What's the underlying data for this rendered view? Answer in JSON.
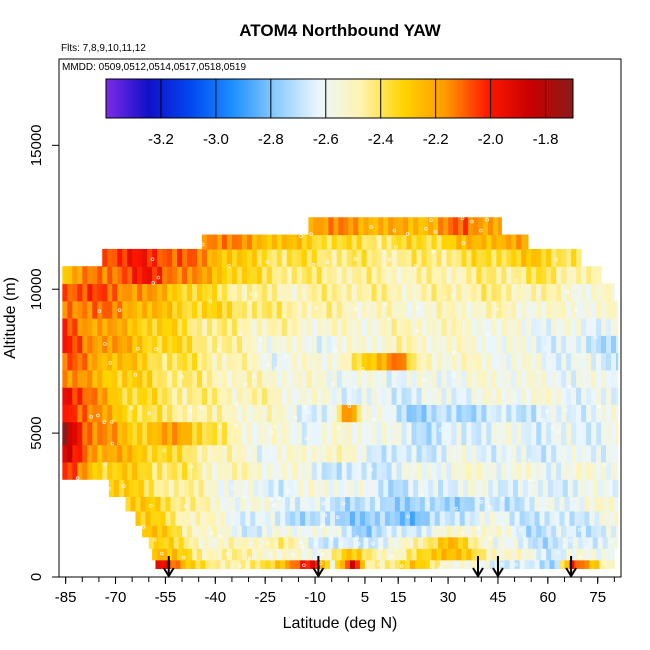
{
  "chart_data": {
    "type": "heatmap",
    "title": "ATOM4 Northbound YAW",
    "flights_note": "Flts: 7,8,9,10,11,12",
    "dates_note": "MMDD: 0509,0512,0514,0517,0518,0519",
    "xlabel": "Latitude (deg N)",
    "ylabel": "Altitude (m)",
    "xlim": [
      -87,
      82
    ],
    "ylim": [
      0,
      18000
    ],
    "x_ticks": [
      -85,
      -70,
      -55,
      -40,
      -25,
      -10,
      5,
      15,
      30,
      45,
      60,
      75
    ],
    "x_tick_labels": [
      "-85",
      "-70",
      "-55",
      "-40",
      "-25",
      "-10",
      "5",
      "15",
      "30",
      "45",
      "60",
      "75"
    ],
    "x_minor_step": 5,
    "y_ticks": [
      0,
      5000,
      10000,
      15000
    ],
    "y_tick_labels": [
      "0",
      "5000",
      "10000",
      "15000"
    ],
    "colorbar": {
      "range": [
        -3.4,
        -1.7
      ],
      "ticks": [
        -3.2,
        -3.0,
        -2.8,
        -2.6,
        -2.4,
        -2.2,
        -2.0,
        -1.8
      ],
      "tick_labels": [
        "-3.2",
        "-3.0",
        "-2.8",
        "-2.6",
        "-2.4",
        "-2.2",
        "-2.0",
        "-1.8"
      ],
      "colors": [
        "#7d2be6",
        "#1010c8",
        "#0048f0",
        "#1e90ff",
        "#8ccaff",
        "#eaf6ff",
        "#fff4b0",
        "#ffd400",
        "#ff9900",
        "#ff1800",
        "#c80000",
        "#8b1a1a"
      ]
    },
    "arrow_latitudes": [
      -54,
      -9,
      39,
      45,
      67
    ],
    "layers": [
      {
        "alt": [
          300,
          600
        ],
        "pts": [
          [
            -55,
            -1.9
          ],
          [
            -48,
            -2.35
          ],
          [
            -30,
            -2.5
          ],
          [
            -10,
            -1.95
          ],
          [
            -5,
            -2.5
          ],
          [
            2,
            -1.85
          ],
          [
            5,
            -2.5
          ],
          [
            20,
            -2.3
          ],
          [
            32,
            -2.55
          ],
          [
            50,
            -2.65
          ],
          [
            62,
            -2.75
          ],
          [
            67,
            -2.0
          ],
          [
            78,
            -2.5
          ]
        ]
      },
      {
        "alt": [
          600,
          1000
        ],
        "pts": [
          [
            -57,
            -2.2
          ],
          [
            -45,
            -2.45
          ],
          [
            -25,
            -2.5
          ],
          [
            -10,
            -2.6
          ],
          [
            0,
            -2.3
          ],
          [
            15,
            -2.55
          ],
          [
            28,
            -2.2
          ],
          [
            45,
            -2.5
          ],
          [
            60,
            -2.65
          ],
          [
            78,
            -2.55
          ]
        ]
      },
      {
        "alt": [
          1000,
          1400
        ],
        "pts": [
          [
            -58,
            -2.3
          ],
          [
            -40,
            -2.55
          ],
          [
            -20,
            -2.45
          ],
          [
            -5,
            -2.7
          ],
          [
            15,
            -2.6
          ],
          [
            30,
            -2.25
          ],
          [
            45,
            -2.6
          ],
          [
            60,
            -2.7
          ],
          [
            78,
            -2.6
          ]
        ]
      },
      {
        "alt": [
          1400,
          1800
        ],
        "pts": [
          [
            -60,
            -2.25
          ],
          [
            -45,
            -2.5
          ],
          [
            -30,
            -2.65
          ],
          [
            -10,
            -2.55
          ],
          [
            5,
            -2.75
          ],
          [
            25,
            -2.6
          ],
          [
            40,
            -2.5
          ],
          [
            55,
            -2.7
          ],
          [
            78,
            -2.65
          ]
        ]
      },
      {
        "alt": [
          1800,
          2300
        ],
        "pts": [
          [
            -62,
            -2.3
          ],
          [
            -50,
            -2.45
          ],
          [
            -35,
            -2.6
          ],
          [
            -15,
            -2.7
          ],
          [
            0,
            -2.75
          ],
          [
            20,
            -2.8
          ],
          [
            40,
            -2.6
          ],
          [
            60,
            -2.7
          ],
          [
            78,
            -2.6
          ]
        ]
      },
      {
        "alt": [
          2300,
          2800
        ],
        "pts": [
          [
            -65,
            -2.3
          ],
          [
            -55,
            -2.35
          ],
          [
            -40,
            -2.55
          ],
          [
            -20,
            -2.6
          ],
          [
            0,
            -2.7
          ],
          [
            25,
            -2.75
          ],
          [
            45,
            -2.7
          ],
          [
            65,
            -2.6
          ],
          [
            78,
            -2.55
          ]
        ]
      },
      {
        "alt": [
          2800,
          3400
        ],
        "pts": [
          [
            -72,
            -2.25
          ],
          [
            -60,
            -2.4
          ],
          [
            -45,
            -2.5
          ],
          [
            -25,
            -2.65
          ],
          [
            -5,
            -2.55
          ],
          [
            15,
            -2.7
          ],
          [
            35,
            -2.6
          ],
          [
            55,
            -2.65
          ],
          [
            78,
            -2.6
          ]
        ]
      },
      {
        "alt": [
          3400,
          4000
        ],
        "pts": [
          [
            -85,
            -2.05
          ],
          [
            -75,
            -2.3
          ],
          [
            -60,
            -2.35
          ],
          [
            -40,
            -2.5
          ],
          [
            -20,
            -2.55
          ],
          [
            0,
            -2.7
          ],
          [
            20,
            -2.6
          ],
          [
            40,
            -2.55
          ],
          [
            60,
            -2.6
          ],
          [
            78,
            -2.55
          ]
        ]
      },
      {
        "alt": [
          4000,
          4600
        ],
        "pts": [
          [
            -85,
            -1.9
          ],
          [
            -75,
            -2.2
          ],
          [
            -60,
            -2.3
          ],
          [
            -45,
            -2.45
          ],
          [
            -25,
            -2.6
          ],
          [
            -5,
            -2.5
          ],
          [
            15,
            -2.7
          ],
          [
            35,
            -2.6
          ],
          [
            55,
            -2.65
          ],
          [
            78,
            -2.6
          ]
        ]
      },
      {
        "alt": [
          4600,
          5400
        ],
        "pts": [
          [
            -85,
            -1.78
          ],
          [
            -78,
            -2.1
          ],
          [
            -65,
            -2.3
          ],
          [
            -50,
            -2.2
          ],
          [
            -35,
            -2.5
          ],
          [
            -15,
            -2.6
          ],
          [
            5,
            -2.55
          ],
          [
            25,
            -2.7
          ],
          [
            45,
            -2.6
          ],
          [
            65,
            -2.65
          ],
          [
            78,
            -2.6
          ]
        ]
      },
      {
        "alt": [
          5400,
          6000
        ],
        "pts": [
          [
            -85,
            -1.95
          ],
          [
            -75,
            -2.2
          ],
          [
            -60,
            -2.4
          ],
          [
            -40,
            -2.5
          ],
          [
            -20,
            -2.55
          ],
          [
            -5,
            -2.7
          ],
          [
            0,
            -2.05
          ],
          [
            5,
            -2.55
          ],
          [
            20,
            -2.75
          ],
          [
            40,
            -2.7
          ],
          [
            60,
            -2.65
          ],
          [
            78,
            -2.6
          ]
        ]
      },
      {
        "alt": [
          6000,
          6600
        ],
        "pts": [
          [
            -85,
            -1.9
          ],
          [
            -78,
            -2.15
          ],
          [
            -65,
            -2.35
          ],
          [
            -45,
            -2.45
          ],
          [
            -25,
            -2.5
          ],
          [
            -5,
            -2.6
          ],
          [
            15,
            -2.65
          ],
          [
            35,
            -2.6
          ],
          [
            55,
            -2.55
          ],
          [
            78,
            -2.65
          ]
        ]
      },
      {
        "alt": [
          6600,
          7200
        ],
        "pts": [
          [
            -85,
            -2.15
          ],
          [
            -75,
            -2.25
          ],
          [
            -55,
            -2.4
          ],
          [
            -35,
            -2.5
          ],
          [
            -15,
            -2.55
          ],
          [
            5,
            -2.6
          ],
          [
            25,
            -2.6
          ],
          [
            45,
            -2.55
          ],
          [
            65,
            -2.6
          ],
          [
            78,
            -2.6
          ]
        ]
      },
      {
        "alt": [
          7200,
          7800
        ],
        "pts": [
          [
            -85,
            -2.1
          ],
          [
            -75,
            -2.2
          ],
          [
            -60,
            -2.35
          ],
          [
            -40,
            -2.45
          ],
          [
            -20,
            -2.6
          ],
          [
            0,
            -2.5
          ],
          [
            15,
            -2.05
          ],
          [
            20,
            -2.5
          ],
          [
            40,
            -2.55
          ],
          [
            60,
            -2.6
          ],
          [
            78,
            -2.65
          ]
        ]
      },
      {
        "alt": [
          7800,
          8400
        ],
        "pts": [
          [
            -85,
            -2.05
          ],
          [
            -75,
            -2.15
          ],
          [
            -60,
            -2.3
          ],
          [
            -45,
            -2.4
          ],
          [
            -25,
            -2.55
          ],
          [
            -5,
            -2.6
          ],
          [
            15,
            -2.5
          ],
          [
            35,
            -2.55
          ],
          [
            55,
            -2.6
          ],
          [
            78,
            -2.7
          ]
        ]
      },
      {
        "alt": [
          8400,
          9000
        ],
        "pts": [
          [
            -85,
            -2.05
          ],
          [
            -75,
            -2.2
          ],
          [
            -60,
            -2.3
          ],
          [
            -40,
            -2.45
          ],
          [
            -20,
            -2.5
          ],
          [
            0,
            -2.55
          ],
          [
            20,
            -2.5
          ],
          [
            40,
            -2.55
          ],
          [
            60,
            -2.6
          ],
          [
            78,
            -2.6
          ]
        ]
      },
      {
        "alt": [
          9000,
          9600
        ],
        "pts": [
          [
            -85,
            -2.1
          ],
          [
            -70,
            -2.15
          ],
          [
            -55,
            -2.3
          ],
          [
            -40,
            -2.35
          ],
          [
            -20,
            -2.45
          ],
          [
            0,
            -2.5
          ],
          [
            20,
            -2.55
          ],
          [
            40,
            -2.5
          ],
          [
            60,
            -2.55
          ],
          [
            78,
            -2.55
          ]
        ]
      },
      {
        "alt": [
          9600,
          10200
        ],
        "pts": [
          [
            -85,
            -2.05
          ],
          [
            -70,
            -2.1
          ],
          [
            -55,
            -2.25
          ],
          [
            -40,
            -2.4
          ],
          [
            -20,
            -2.5
          ],
          [
            0,
            -2.45
          ],
          [
            20,
            -2.5
          ],
          [
            40,
            -2.45
          ],
          [
            60,
            -2.5
          ],
          [
            72,
            -2.55
          ]
        ]
      },
      {
        "alt": [
          10200,
          10800
        ],
        "pts": [
          [
            -85,
            -2.25
          ],
          [
            -72,
            -2.1
          ],
          [
            -60,
            -2.0
          ],
          [
            -45,
            -2.2
          ],
          [
            -25,
            -2.4
          ],
          [
            -5,
            -2.45
          ],
          [
            20,
            -2.5
          ],
          [
            40,
            -2.45
          ],
          [
            60,
            -2.4
          ],
          [
            72,
            -2.5
          ]
        ]
      },
      {
        "alt": [
          10800,
          11400
        ],
        "pts": [
          [
            -72,
            -2.05
          ],
          [
            -60,
            -2.0
          ],
          [
            -45,
            -2.15
          ],
          [
            -30,
            -2.35
          ],
          [
            -10,
            -2.4
          ],
          [
            15,
            -2.45
          ],
          [
            35,
            -2.4
          ],
          [
            55,
            -2.3
          ],
          [
            70,
            -2.4
          ]
        ]
      },
      {
        "alt": [
          11400,
          11900
        ],
        "pts": [
          [
            -42,
            -2.1
          ],
          [
            -30,
            -2.2
          ],
          [
            -15,
            -2.3
          ],
          [
            5,
            -2.4
          ],
          [
            25,
            -2.35
          ],
          [
            45,
            -2.2
          ],
          [
            55,
            -2.25
          ]
        ]
      },
      {
        "alt": [
          11900,
          12500
        ],
        "pts": [
          [
            -10,
            -2.15
          ],
          [
            5,
            -2.2
          ],
          [
            20,
            -2.25
          ],
          [
            35,
            -2.1
          ],
          [
            45,
            -2.2
          ]
        ]
      }
    ],
    "layer_extents": [
      [
        -58,
        80
      ],
      [
        -59,
        80
      ],
      [
        -60,
        81
      ],
      [
        -62,
        81
      ],
      [
        -64,
        81
      ],
      [
        -67,
        81
      ],
      [
        -72,
        81
      ],
      [
        -86,
        81
      ],
      [
        -86,
        81
      ],
      [
        -86,
        81
      ],
      [
        -86,
        81
      ],
      [
        -86,
        81
      ],
      [
        -86,
        81
      ],
      [
        -86,
        81
      ],
      [
        -86,
        81
      ],
      [
        -86,
        81
      ],
      [
        -86,
        81
      ],
      [
        -86,
        80
      ],
      [
        -86,
        76
      ],
      [
        -74,
        70
      ],
      [
        -44,
        54
      ],
      [
        -12,
        46
      ]
    ]
  }
}
